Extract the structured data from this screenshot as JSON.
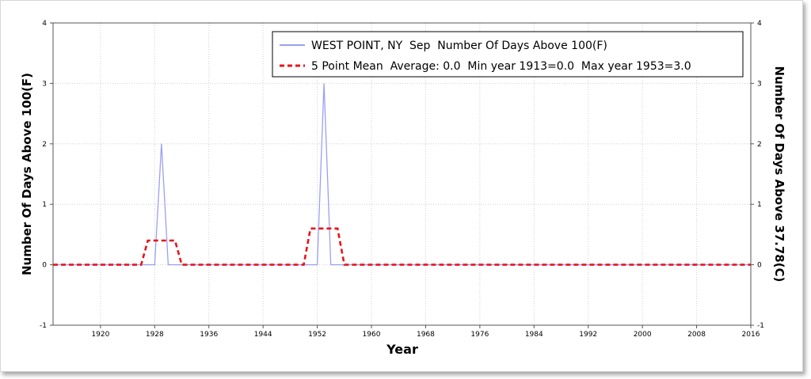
{
  "chart_data": {
    "type": "line",
    "xlabel": "Year",
    "ylabel_left": "Number Of Days Above 100(F)",
    "ylabel_right": "Number Of Days Above 37.78(C)",
    "xlim": [
      1913,
      2016
    ],
    "ylim": [
      -1,
      4
    ],
    "x_ticks": [
      1920,
      1928,
      1936,
      1944,
      1952,
      1960,
      1968,
      1976,
      1984,
      1992,
      2000,
      2008,
      2016
    ],
    "y_ticks": [
      -1,
      0,
      1,
      2,
      3,
      4
    ],
    "grid": true,
    "legend_position": "top-right",
    "legend": [
      "WEST POINT, NY  Sep  Number Of Days Above 100(F)",
      "5 Point Mean  Average: 0.0  Min year 1913=0.0  Max year 1953=3.0"
    ],
    "colors": {
      "series": "#9aa0f0",
      "mean": "#e8141b",
      "grid": "#cfcfcf",
      "axis": "#000000"
    },
    "series": [
      {
        "name": "WEST POINT, NY  Sep  Number Of Days Above 100(F)",
        "style": "solid",
        "points": [
          [
            1913,
            0
          ],
          [
            1928,
            0
          ],
          [
            1929,
            2
          ],
          [
            1930,
            0
          ],
          [
            1952,
            0
          ],
          [
            1953,
            3
          ],
          [
            1954,
            0
          ],
          [
            2016,
            0
          ]
        ]
      },
      {
        "name": "5 Point Mean  Average: 0.0  Min year 1913=0.0  Max year 1953=3.0",
        "style": "dashed",
        "points": [
          [
            1913,
            0
          ],
          [
            1926,
            0
          ],
          [
            1927,
            0.4
          ],
          [
            1931,
            0.4
          ],
          [
            1932,
            0
          ],
          [
            1950,
            0
          ],
          [
            1951,
            0.6
          ],
          [
            1955,
            0.6
          ],
          [
            1956,
            0
          ],
          [
            2016,
            0
          ]
        ]
      }
    ]
  }
}
